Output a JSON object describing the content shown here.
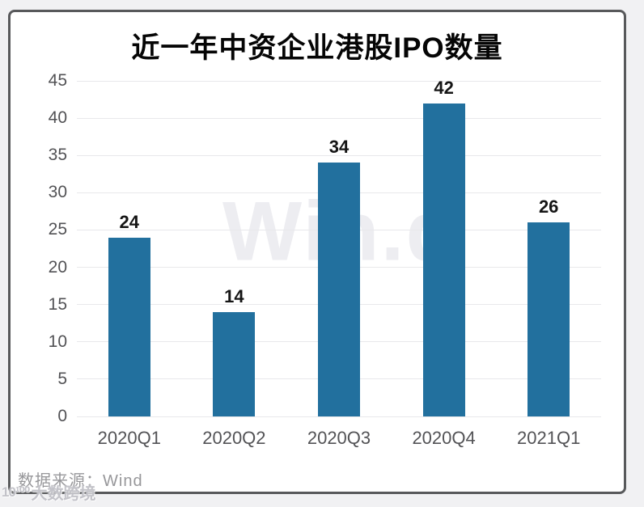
{
  "chart_data": {
    "type": "bar",
    "title": "近一年中资企业港股IPO数量",
    "categories": [
      "2020Q1",
      "2020Q2",
      "2020Q3",
      "2020Q4",
      "2021Q1"
    ],
    "values": [
      24,
      14,
      34,
      42,
      26
    ],
    "xlabel": "",
    "ylabel": "",
    "ylim": [
      0,
      45
    ],
    "yticks": [
      0,
      5,
      10,
      15,
      20,
      25,
      30,
      35,
      40,
      45
    ],
    "grid": true,
    "legend": "none",
    "value_labels": true,
    "bar_color": "#22709e",
    "grid_color": "#e8e8eb",
    "watermark": "Win.d"
  },
  "footer": {
    "source_label": "数据来源：Wind"
  },
  "site_watermark": {
    "logo": "10¹⁰⁰",
    "text": "大数跨境"
  }
}
